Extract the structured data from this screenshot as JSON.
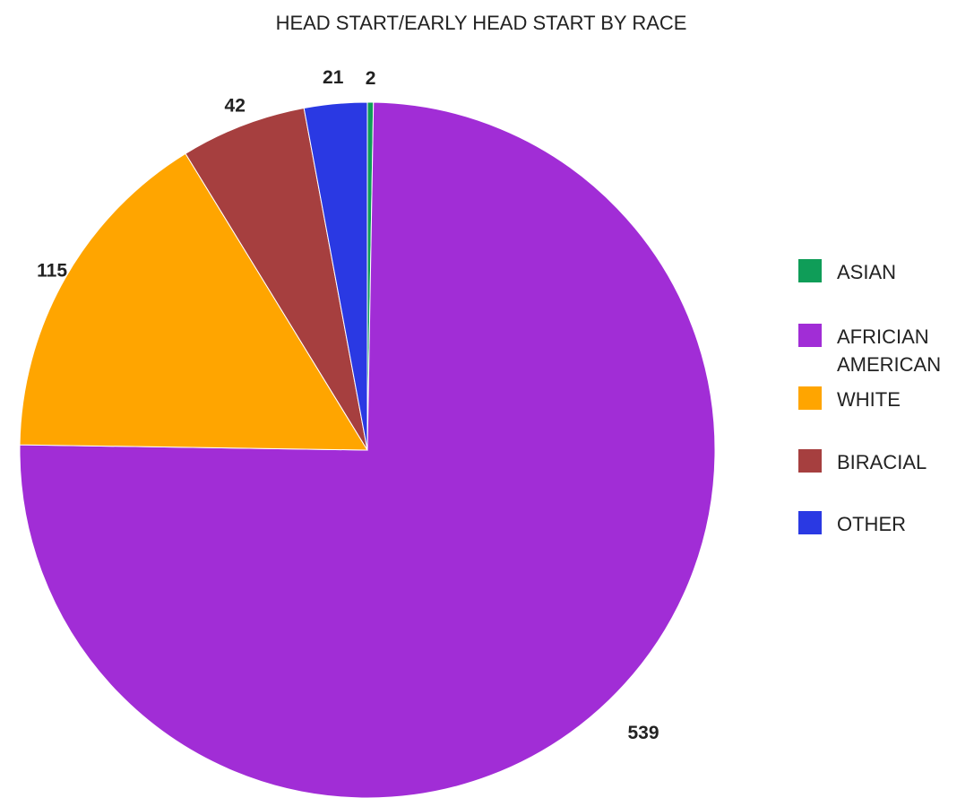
{
  "chart_data": {
    "type": "pie",
    "title": "HEAD START/EARLY HEAD START BY RACE",
    "start_angle_deg": 0,
    "direction": "clockwise",
    "legend_position": "right",
    "slices": [
      {
        "label": "ASIAN",
        "legend_lines": [
          "ASIAN"
        ],
        "value": 2,
        "data_label": "2",
        "color": "#0f9d58"
      },
      {
        "label": "AFRICIAN AMERICAN",
        "legend_lines": [
          "AFRICIAN",
          "AMERICAN"
        ],
        "value": 539,
        "data_label": "539",
        "color": "#a12dd6"
      },
      {
        "label": "WHITE",
        "legend_lines": [
          "WHITE"
        ],
        "value": 115,
        "data_label": "115",
        "color": "#ffa500"
      },
      {
        "label": "BIRACIAL",
        "legend_lines": [
          "BIRACIAL"
        ],
        "value": 42,
        "data_label": "42",
        "color": "#a63f3f"
      },
      {
        "label": "OTHER",
        "legend_lines": [
          "OTHER"
        ],
        "value": 21,
        "data_label": "21",
        "color": "#2a39e3"
      }
    ]
  }
}
